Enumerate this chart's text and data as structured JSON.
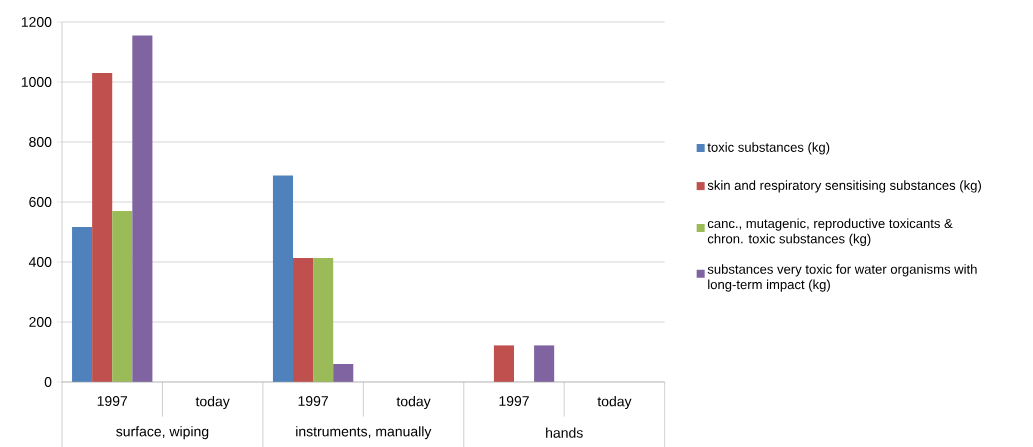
{
  "chart_data": {
    "type": "bar",
    "categories": [
      "1997",
      "today",
      "1997",
      "today",
      "1997",
      "today"
    ],
    "series": [
      {
        "name": "toxic substances (kg)",
        "color": "#4f81bd",
        "values": [
          517,
          0,
          688,
          0,
          0,
          0
        ]
      },
      {
        "name": "skin and respiratory sensitising substances (kg)",
        "color": "#c0504d",
        "values": [
          1030,
          0,
          413,
          0,
          122,
          0
        ]
      },
      {
        "name": "canc., mutagenic, reproductive toxicants & chron. toxic substances (kg)",
        "color": "#9bbb59",
        "values": [
          570,
          0,
          413,
          0,
          0,
          0
        ]
      },
      {
        "name": "substances very toxic for water organisms with long-term impact (kg)",
        "color": "#8064a2",
        "values": [
          1155,
          0,
          60,
          0,
          122,
          0
        ]
      }
    ],
    "annotations": [
      "surface, wiping",
      "instruments, manually",
      "hands"
    ],
    "ylim": [
      0,
      1200
    ],
    "yticks": [
      0,
      200,
      400,
      600,
      800,
      1000,
      1200
    ],
    "grid": "y",
    "legend": "right"
  }
}
